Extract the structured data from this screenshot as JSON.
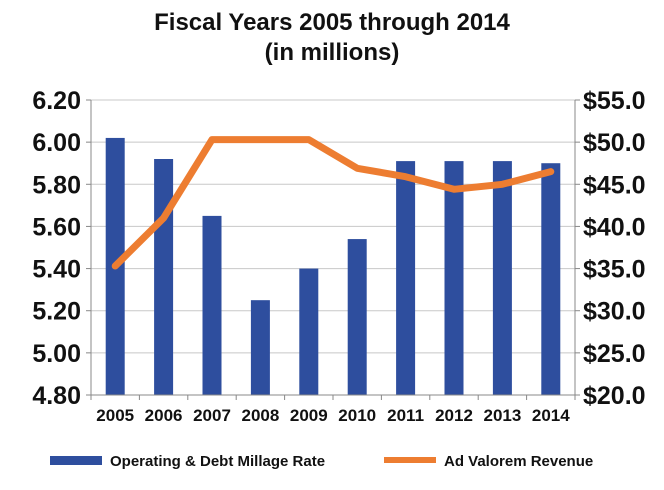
{
  "chart_data": {
    "type": "bar",
    "title_lines": [
      "Fiscal Years 2005 through 2014",
      "(in millions)"
    ],
    "categories": [
      "2005",
      "2006",
      "2007",
      "2008",
      "2009",
      "2010",
      "2011",
      "2012",
      "2013",
      "2014"
    ],
    "series": [
      {
        "name": "Operating & Debt Millage Rate",
        "type": "bar",
        "axis": "left",
        "color": "#2E4E9E",
        "values": [
          6.02,
          5.92,
          5.65,
          5.25,
          5.4,
          5.54,
          5.91,
          5.91,
          5.91,
          5.9
        ]
      },
      {
        "name": "Ad Valorem Revenue",
        "type": "line",
        "axis": "right",
        "color": "#ED7D31",
        "values": [
          35.3,
          41.0,
          50.3,
          50.3,
          50.3,
          46.9,
          45.9,
          44.4,
          45.0,
          46.5
        ]
      }
    ],
    "left_axis": {
      "ylim": [
        4.8,
        6.2
      ],
      "ticks": [
        "4.80",
        "5.00",
        "5.20",
        "5.40",
        "5.60",
        "5.80",
        "6.00",
        "6.20"
      ]
    },
    "right_axis": {
      "ylim": [
        20.0,
        55.0
      ],
      "ticks": [
        "$20.0",
        "$25.0",
        "$30.0",
        "$35.0",
        "$40.0",
        "$45.0",
        "$50.0",
        "$55.0"
      ]
    },
    "grid": true,
    "legend_position": "bottom"
  }
}
